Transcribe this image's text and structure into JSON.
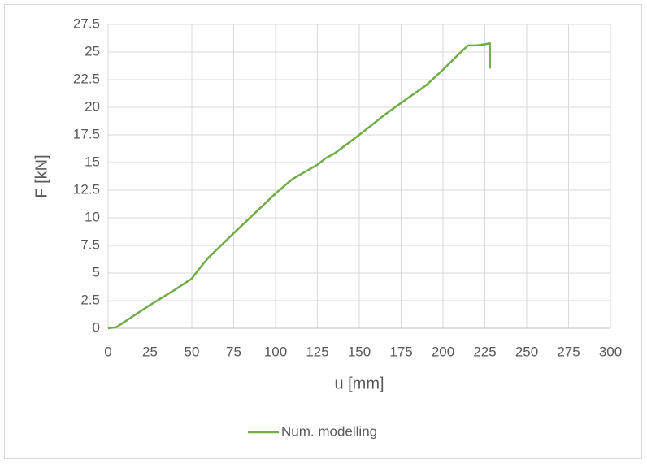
{
  "chart_data": {
    "type": "line",
    "xlabel": "u [mm]",
    "ylabel": "F [kN]",
    "x": [
      0,
      5,
      10,
      25,
      40,
      50,
      55,
      60,
      75,
      100,
      110,
      125,
      130,
      135,
      150,
      165,
      175,
      190,
      200,
      210,
      215,
      220,
      225,
      228,
      228
    ],
    "series": [
      {
        "name": "Num. modelling",
        "color": "#70ad47",
        "values": [
          0,
          0.1,
          0.6,
          2.1,
          3.5,
          4.5,
          5.5,
          6.4,
          8.6,
          12.2,
          13.5,
          14.8,
          15.4,
          15.8,
          17.5,
          19.3,
          20.4,
          22,
          23.4,
          24.9,
          25.6,
          25.6,
          25.7,
          25.8,
          23.5
        ]
      }
    ],
    "xlim": [
      0,
      300
    ],
    "xticks": [
      0,
      25,
      50,
      75,
      100,
      125,
      150,
      175,
      200,
      225,
      250,
      275,
      300
    ],
    "ylim": [
      0,
      27.5
    ],
    "yticks": [
      0,
      2.5,
      5,
      7.5,
      10,
      12.5,
      15,
      17.5,
      20,
      22.5,
      25,
      27.5
    ],
    "grid": true,
    "legend": "bottom"
  }
}
